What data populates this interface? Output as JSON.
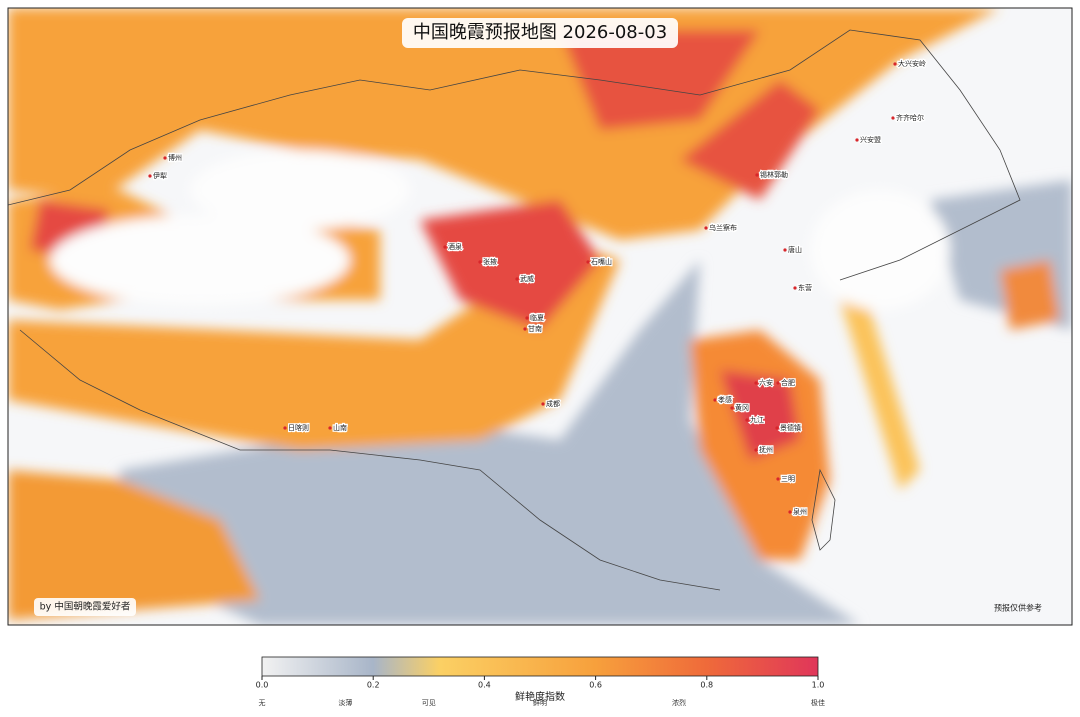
{
  "title": "中国晚霞预报地图  2026-08-03",
  "credit": "by 中国朝晚霞爱好者",
  "disclaimer": "预报仅供参考",
  "colorbar": {
    "label": "鲜艳度指数",
    "ticks": [
      {
        "value": 0,
        "label": "0.0"
      },
      {
        "value": 0.2,
        "label": "0.2"
      },
      {
        "value": 0.4,
        "label": "0.4"
      },
      {
        "value": 0.6,
        "label": "0.6"
      },
      {
        "value": 0.8,
        "label": "0.8"
      },
      {
        "value": 1,
        "label": "1.0"
      }
    ],
    "levels": [
      {
        "value": 0,
        "label": "无"
      },
      {
        "value": 0.15,
        "label": "淡薄"
      },
      {
        "value": 0.3,
        "label": "可见"
      },
      {
        "value": 0.5,
        "label": "鲜明"
      },
      {
        "value": 0.75,
        "label": "浓烈"
      },
      {
        "value": 1,
        "label": "极佳"
      }
    ],
    "range": [
      0,
      1
    ]
  },
  "cities": [
    "博州",
    "伊犁",
    "酒泉",
    "张掖",
    "武威",
    "石嘴山",
    "临夏",
    "甘南",
    "成都",
    "日喀则",
    "山南",
    "大兴安岭",
    "齐齐哈尔",
    "兴安盟",
    "锡林郭勒",
    "乌兰察布",
    "唐山",
    "东营",
    "六安",
    "合肥",
    "孝感",
    "黄冈",
    "九江",
    "景德镇",
    "抚州",
    "三明",
    "泉州"
  ]
}
